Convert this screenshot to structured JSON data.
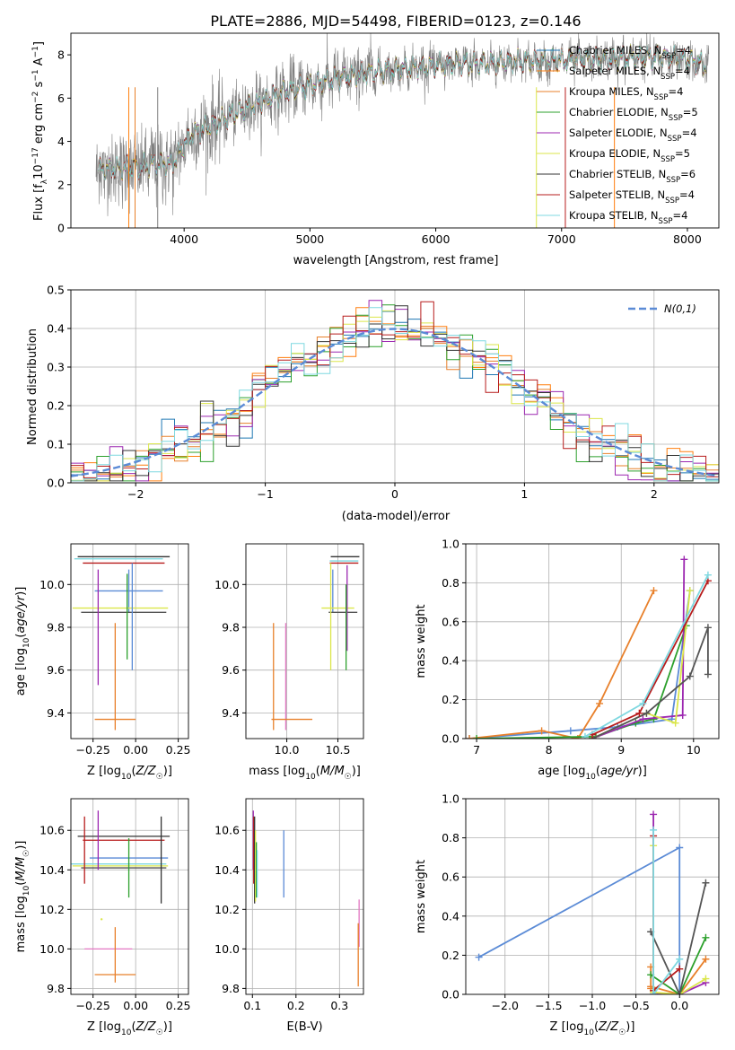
{
  "chart_data": [
    {
      "id": "spectrum",
      "type": "line",
      "title": "PLATE=2886, MJD=54498, FIBERID=0123, z=0.146",
      "xlabel": "wavelength [Angstrom, rest frame]",
      "ylabel": "Flux [f_λ 10^-17 erg cm^-2 s^-1 A^-1]",
      "xlim": [
        3100,
        8250
      ],
      "ylim": [
        0,
        9
      ],
      "xticks": [
        4000,
        5000,
        6000,
        7000,
        8000
      ],
      "yticks": [
        0,
        2,
        4,
        6,
        8
      ],
      "grid": false,
      "legend_placement": "upper-right",
      "data_series": {
        "name": "",
        "color": "#808080"
      },
      "continuum_anchor_points": {
        "x": [
          3300,
          3550,
          3650,
          3800,
          3900,
          4050,
          4200,
          4400,
          4600,
          4800,
          5000,
          5200,
          5400,
          5600,
          5800,
          6000,
          6200,
          6400,
          6600,
          6800,
          7000,
          7200,
          7400,
          7600,
          7800,
          8000,
          8150
        ],
        "y": [
          2.7,
          2.8,
          2.8,
          3.0,
          2.9,
          4.3,
          4.7,
          5.3,
          5.8,
          6.3,
          6.6,
          6.9,
          7.1,
          7.3,
          7.4,
          7.5,
          7.6,
          7.6,
          7.7,
          7.7,
          7.75,
          7.8,
          7.8,
          7.9,
          7.9,
          7.8,
          7.5
        ]
      },
      "series": [
        {
          "name": "Chabrier MILES",
          "nssp": "4",
          "color": "#1f77b4"
        },
        {
          "name": "Salpeter MILES",
          "nssp": "4",
          "color": "#ff7f0e"
        },
        {
          "name": "Kroupa MILES",
          "nssp": "4",
          "color": "#e8802b"
        },
        {
          "name": "Chabrier ELODIE",
          "nssp": "5",
          "color": "#2ca02c"
        },
        {
          "name": "Salpeter ELODIE",
          "nssp": "4",
          "color": "#9c27b0"
        },
        {
          "name": "Kroupa ELODIE",
          "nssp": "5",
          "color": "#dbe64a"
        },
        {
          "name": "Chabrier STELIB",
          "nssp": "6",
          "color": "#333333"
        },
        {
          "name": "Salpeter STELIB",
          "nssp": "4",
          "color": "#b71c1c"
        },
        {
          "name": "Kroupa STELIB",
          "nssp": "4",
          "color": "#7fd8e0"
        }
      ],
      "legend_items": [
        {
          "prefix": "Chabrier MILES, N",
          "sub": "SSP",
          "suffix": "=4",
          "color": "#1f77b4"
        },
        {
          "prefix": "Salpeter MILES, N",
          "sub": "SSP",
          "suffix": "=4",
          "color": "#ff7f0e"
        },
        {
          "prefix": "Kroupa MILES, N",
          "sub": "SSP",
          "suffix": "=4",
          "color": "#e8802b"
        },
        {
          "prefix": "Chabrier ELODIE, N",
          "sub": "SSP",
          "suffix": "=5",
          "color": "#2ca02c"
        },
        {
          "prefix": "Salpeter ELODIE, N",
          "sub": "SSP",
          "suffix": "=4",
          "color": "#9c27b0"
        },
        {
          "prefix": "Kroupa ELODIE, N",
          "sub": "SSP",
          "suffix": "=5",
          "color": "#dbe64a"
        },
        {
          "prefix": "Chabrier STELIB, N",
          "sub": "SSP",
          "suffix": "=6",
          "color": "#333333"
        },
        {
          "prefix": "Salpeter STELIB, N",
          "sub": "SSP",
          "suffix": "=4",
          "color": "#b71c1c"
        },
        {
          "prefix": "Kroupa STELIB, N",
          "sub": "SSP",
          "suffix": "=4",
          "color": "#7fd8e0"
        }
      ]
    },
    {
      "id": "residuals",
      "type": "line",
      "title": "",
      "xlabel": "(data-model)/error",
      "ylabel": "Normed distribution",
      "xlim": [
        -2.5,
        2.5
      ],
      "ylim": [
        0,
        0.5
      ],
      "xticks": [
        -2,
        -1,
        0,
        1,
        2
      ],
      "yticks": [
        0.0,
        0.1,
        0.2,
        0.3,
        0.4,
        0.5
      ],
      "grid": true,
      "legend_placement": "upper-right",
      "reference": {
        "name": "N(0,1)",
        "mean": 0,
        "sigma": 1,
        "color": "#5b8bd6"
      },
      "bin_edges": [
        -2.5,
        -2.4,
        -2.3,
        -2.2,
        -2.1,
        -2.0,
        -1.9,
        -1.8,
        -1.7,
        -1.6,
        -1.5,
        -1.4,
        -1.3,
        -1.2,
        -1.1,
        -1.0,
        -0.9,
        -0.8,
        -0.7,
        -0.6,
        -0.5,
        -0.4,
        -0.3,
        -0.2,
        -0.1,
        0.0,
        0.1,
        0.2,
        0.3,
        0.4,
        0.5,
        0.6,
        0.7,
        0.8,
        0.9,
        1.0,
        1.1,
        1.2,
        1.3,
        1.4,
        1.5,
        1.6,
        1.7,
        1.8,
        1.9,
        2.0,
        2.1,
        2.2,
        2.3,
        2.4,
        2.5
      ],
      "histogram_colors": [
        "#1f77b4",
        "#ff7f0e",
        "#e8802b",
        "#2ca02c",
        "#9c27b0",
        "#dbe64a",
        "#333333",
        "#b71c1c",
        "#7fd8e0"
      ]
    },
    {
      "id": "age_vs_Z_errorbars",
      "type": "scatter",
      "xlabel": "Z [log10(Z/Z☉)]",
      "ylabel": "age [log10(age/yr)]",
      "xlim": [
        -0.38,
        0.31
      ],
      "ylim": [
        9.28,
        10.19
      ],
      "xticks": [
        -0.25,
        0.0,
        0.25
      ],
      "yticks": [
        9.4,
        9.6,
        9.8,
        10.0
      ],
      "grid": true,
      "points": [
        {
          "x": -0.1,
          "y": 10.12,
          "xerr": 0.26,
          "yerr": 0.0,
          "color": "#7fd8e0"
        },
        {
          "x": -0.07,
          "y": 10.13,
          "xerr": 0.27,
          "yerr": 0.0,
          "color": "#333333"
        },
        {
          "x": -0.07,
          "y": 10.1,
          "xerr": 0.24,
          "yerr": 0.0,
          "color": "#b71c1c"
        },
        {
          "x": -0.04,
          "y": 9.97,
          "xerr": 0.2,
          "yerr": 0.1,
          "color": "#5b8bd6"
        },
        {
          "x": -0.09,
          "y": 9.89,
          "xerr": 0.28,
          "yerr": 0.0,
          "color": "#dbe64a"
        },
        {
          "x": -0.07,
          "y": 9.87,
          "xerr": 0.25,
          "yerr": 0.0,
          "color": "#555555"
        },
        {
          "x": -0.22,
          "y": 9.8,
          "xerr": 0.0,
          "yerr": 0.27,
          "color": "#9c27b0"
        },
        {
          "x": -0.05,
          "y": 9.85,
          "xerr": 0.0,
          "yerr": 0.2,
          "color": "#2ca02c"
        },
        {
          "x": -0.02,
          "y": 9.85,
          "xerr": 0.0,
          "yerr": 0.25,
          "color": "#5b8bd6"
        },
        {
          "x": -0.12,
          "y": 9.37,
          "xerr": 0.12,
          "yerr": 0.0,
          "color": "#e8802b"
        },
        {
          "x": -0.12,
          "y": 9.57,
          "xerr": 0.0,
          "yerr": 0.25,
          "color": "#e8802b"
        }
      ]
    },
    {
      "id": "age_vs_mass_errorbars",
      "type": "scatter",
      "xlabel": "mass [log10(M/M☉)]",
      "ylabel": "",
      "xlim": [
        9.6,
        10.75
      ],
      "ylim": [
        9.28,
        10.19
      ],
      "xticks": [
        10.0,
        10.5
      ],
      "yticks": [
        9.4,
        9.6,
        9.8,
        10.0
      ],
      "grid": true,
      "points": [
        {
          "x": 10.56,
          "y": 10.11,
          "xerr": 0.14,
          "yerr": 0.0,
          "color": "#7fd8e0"
        },
        {
          "x": 10.57,
          "y": 10.13,
          "xerr": 0.14,
          "yerr": 0.0,
          "color": "#333333"
        },
        {
          "x": 10.56,
          "y": 10.1,
          "xerr": 0.14,
          "yerr": 0.0,
          "color": "#b71c1c"
        },
        {
          "x": 10.45,
          "y": 9.97,
          "xerr": 0.0,
          "yerr": 0.1,
          "color": "#5b8bd6"
        },
        {
          "x": 10.5,
          "y": 9.89,
          "xerr": 0.16,
          "yerr": 0.0,
          "color": "#dbe64a"
        },
        {
          "x": 10.55,
          "y": 9.87,
          "xerr": 0.14,
          "yerr": 0.0,
          "color": "#555555"
        },
        {
          "x": 10.59,
          "y": 9.89,
          "xerr": 0.0,
          "yerr": 0.2,
          "color": "#9c27b0"
        },
        {
          "x": 10.43,
          "y": 9.85,
          "xerr": 0.0,
          "yerr": 0.25,
          "color": "#dbe64a"
        },
        {
          "x": 10.58,
          "y": 9.8,
          "xerr": 0.0,
          "yerr": 0.2,
          "color": "#2ca02c"
        },
        {
          "x": 9.99,
          "y": 9.57,
          "xerr": 0.0,
          "yerr": 0.25,
          "color": "#e377c2"
        },
        {
          "x": 9.87,
          "y": 9.57,
          "xerr": 0.0,
          "yerr": 0.25,
          "color": "#e8802b"
        },
        {
          "x": 10.05,
          "y": 9.37,
          "xerr": 0.2,
          "yerr": 0.0,
          "color": "#e8802b"
        }
      ]
    },
    {
      "id": "mass_weight_vs_age",
      "type": "line",
      "xlabel": "age [log10(age/yr)]",
      "ylabel": "mass weight",
      "xlim": [
        6.85,
        10.35
      ],
      "ylim": [
        0,
        1.0
      ],
      "xticks": [
        7,
        8,
        9,
        10
      ],
      "yticks": [
        0.0,
        0.2,
        0.4,
        0.6,
        0.8,
        1.0
      ],
      "grid": true,
      "series": [
        {
          "color": "#5b8bd6",
          "x": [
            6.9,
            8.3,
            8.95,
            9.7,
            9.95
          ],
          "y": [
            0.0,
            0.04,
            0.06,
            0.1,
            0.76
          ]
        },
        {
          "color": "#e8802b",
          "x": [
            6.9,
            7.9,
            8.4,
            8.7,
            9.45
          ],
          "y": [
            0.0,
            0.04,
            0.0,
            0.18,
            0.76
          ]
        },
        {
          "color": "#2ca02c",
          "x": [
            7.0,
            8.65,
            9.2,
            9.45,
            9.9
          ],
          "y": [
            0.0,
            0.01,
            0.08,
            0.1,
            0.58
          ]
        },
        {
          "color": "#9c27b0",
          "x": [
            8.6,
            9.3,
            9.85,
            9.87
          ],
          "y": [
            0.0,
            0.1,
            0.12,
            0.92
          ]
        },
        {
          "color": "#dbe64a",
          "x": [
            8.6,
            9.35,
            9.75,
            9.95
          ],
          "y": [
            0.0,
            0.13,
            0.08,
            0.76
          ]
        },
        {
          "color": "#555555",
          "x": [
            8.6,
            9.35,
            9.95,
            10.2,
            10.2
          ],
          "y": [
            0.0,
            0.13,
            0.32,
            0.57,
            0.33
          ]
        },
        {
          "color": "#b71c1c",
          "x": [
            8.6,
            9.25,
            10.2
          ],
          "y": [
            0.02,
            0.13,
            0.81
          ]
        },
        {
          "color": "#7fd8e0",
          "x": [
            8.5,
            9.3,
            10.2
          ],
          "y": [
            0.01,
            0.18,
            0.84
          ]
        }
      ]
    },
    {
      "id": "mass_vs_Z_errorbars",
      "type": "scatter",
      "xlabel": "Z [log10(Z/Z☉)]",
      "ylabel": "mass [log10(M/M☉)]",
      "xlim": [
        -0.38,
        0.31
      ],
      "ylim": [
        9.77,
        10.76
      ],
      "xticks": [
        -0.25,
        0.0,
        0.25
      ],
      "yticks": [
        9.8,
        10.0,
        10.2,
        10.4,
        10.6
      ],
      "grid": true,
      "points": [
        {
          "x": -0.07,
          "y": 10.57,
          "xerr": 0.27,
          "yerr": 0.0,
          "color": "#333333"
        },
        {
          "x": -0.07,
          "y": 10.55,
          "xerr": 0.24,
          "yerr": 0.0,
          "color": "#b71c1c"
        },
        {
          "x": -0.04,
          "y": 10.46,
          "xerr": 0.23,
          "yerr": 0.0,
          "color": "#5b8bd6"
        },
        {
          "x": -0.1,
          "y": 10.43,
          "xerr": 0.28,
          "yerr": 0.0,
          "color": "#7fd8e0"
        },
        {
          "x": -0.09,
          "y": 10.42,
          "xerr": 0.28,
          "yerr": 0.0,
          "color": "#dbe64a"
        },
        {
          "x": -0.07,
          "y": 10.41,
          "xerr": 0.25,
          "yerr": 0.0,
          "color": "#555555"
        },
        {
          "x": -0.3,
          "y": 10.5,
          "xerr": 0.0,
          "yerr": 0.17,
          "color": "#b71c1c"
        },
        {
          "x": -0.22,
          "y": 10.55,
          "xerr": 0.0,
          "yerr": 0.15,
          "color": "#9c27b0"
        },
        {
          "x": -0.04,
          "y": 10.41,
          "xerr": 0.0,
          "yerr": 0.15,
          "color": "#2ca02c"
        },
        {
          "x": 0.15,
          "y": 10.45,
          "xerr": 0.0,
          "yerr": 0.22,
          "color": "#333333"
        },
        {
          "x": -0.16,
          "y": 10.0,
          "xerr": 0.14,
          "yerr": 0.0,
          "color": "#e377c2"
        },
        {
          "x": -0.2,
          "y": 10.15,
          "xerr": 0.0,
          "yerr": 0.0,
          "color": "#dbe64a"
        },
        {
          "x": -0.12,
          "y": 9.87,
          "xerr": 0.12,
          "yerr": 0.0,
          "color": "#e8802b"
        },
        {
          "x": -0.12,
          "y": 9.97,
          "xerr": 0.0,
          "yerr": 0.14,
          "color": "#e8802b"
        }
      ]
    },
    {
      "id": "mass_vs_EBV_errorbars",
      "type": "scatter",
      "xlabel": "E(B-V)",
      "ylabel": "",
      "xlim": [
        0.085,
        0.355
      ],
      "ylim": [
        9.77,
        10.76
      ],
      "xticks": [
        0.1,
        0.2,
        0.3
      ],
      "yticks": [
        9.8,
        10.0,
        10.2,
        10.4,
        10.6
      ],
      "grid": true,
      "points": [
        {
          "x": 0.102,
          "y": 10.55,
          "xerr": 0.0,
          "yerr": 0.15,
          "color": "#9c27b0"
        },
        {
          "x": 0.103,
          "y": 10.5,
          "xerr": 0.0,
          "yerr": 0.17,
          "color": "#b71c1c"
        },
        {
          "x": 0.105,
          "y": 10.45,
          "xerr": 0.0,
          "yerr": 0.22,
          "color": "#333333"
        },
        {
          "x": 0.107,
          "y": 10.42,
          "xerr": 0.0,
          "yerr": 0.18,
          "color": "#dbe64a"
        },
        {
          "x": 0.109,
          "y": 10.4,
          "xerr": 0.0,
          "yerr": 0.14,
          "color": "#2ca02c"
        },
        {
          "x": 0.111,
          "y": 10.38,
          "xerr": 0.0,
          "yerr": 0.12,
          "color": "#7fd8e0"
        },
        {
          "x": 0.172,
          "y": 10.43,
          "xerr": 0.0,
          "yerr": 0.17,
          "color": "#5b8bd6"
        },
        {
          "x": 0.345,
          "y": 10.13,
          "xerr": 0.0,
          "yerr": 0.12,
          "color": "#e377c2"
        },
        {
          "x": 0.343,
          "y": 9.97,
          "xerr": 0.0,
          "yerr": 0.16,
          "color": "#e8802b"
        }
      ]
    },
    {
      "id": "mass_weight_vs_Z",
      "type": "line",
      "xlabel": "Z [log10(Z/Z☉)]",
      "ylabel": "mass weight",
      "xlim": [
        -2.45,
        0.45
      ],
      "ylim": [
        0,
        1.0
      ],
      "xticks": [
        -2.0,
        -1.5,
        -1.0,
        -0.5,
        0.0
      ],
      "yticks": [
        0.0,
        0.2,
        0.4,
        0.6,
        0.8,
        1.0
      ],
      "grid": true,
      "series": [
        {
          "color": "#5b8bd6",
          "x": [
            -2.3,
            0.0,
            0.0
          ],
          "y": [
            0.19,
            0.75,
            0.0
          ]
        },
        {
          "color": "#e8802b",
          "x": [
            -0.33,
            0.0,
            0.3
          ],
          "y": [
            0.04,
            0.0,
            0.18
          ]
        },
        {
          "color": "#e8802b",
          "x": [
            -0.33,
            -0.33
          ],
          "y": [
            0.14,
            0.03
          ]
        },
        {
          "color": "#2ca02c",
          "x": [
            -0.33,
            0.0,
            0.3
          ],
          "y": [
            0.1,
            0.0,
            0.29
          ]
        },
        {
          "color": "#9c27b0",
          "x": [
            -0.3,
            -0.3,
            0.0,
            0.3
          ],
          "y": [
            0.92,
            0.0,
            0.0,
            0.06
          ]
        },
        {
          "color": "#dbe64a",
          "x": [
            -0.3,
            -0.3,
            0.0,
            0.3
          ],
          "y": [
            0.76,
            0.01,
            0.0,
            0.08
          ]
        },
        {
          "color": "#555555",
          "x": [
            -0.33,
            0.0,
            0.3
          ],
          "y": [
            0.32,
            0.0,
            0.57
          ]
        },
        {
          "color": "#b71c1c",
          "x": [
            -0.3,
            -0.3,
            0.0
          ],
          "y": [
            0.81,
            0.02,
            0.13
          ]
        },
        {
          "color": "#7fd8e0",
          "x": [
            -0.3,
            -0.3,
            0.0
          ],
          "y": [
            0.84,
            0.0,
            0.18
          ]
        }
      ]
    }
  ]
}
